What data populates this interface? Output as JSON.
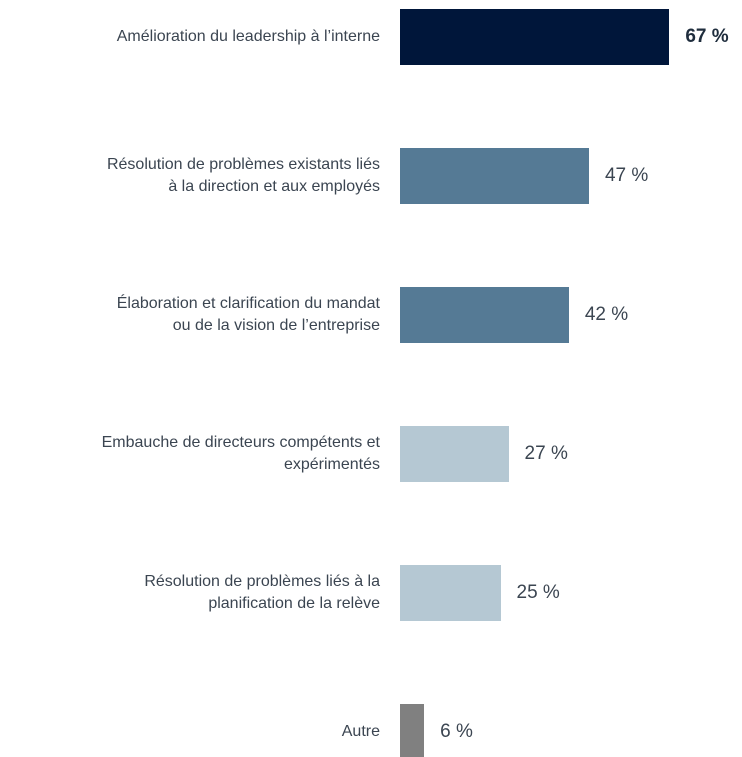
{
  "chart_data": {
    "type": "bar",
    "orientation": "horizontal",
    "categories": [
      "Amélioration du leadership à l’interne",
      "Résolution de problèmes existants liés\nà la direction et aux employés",
      "Élaboration et clarification du mandat\nou de la vision de l’entreprise",
      "Embauche de directeurs compétents et\nexpérimentés",
      "Résolution de problèmes liés à la\nplanification de la relève",
      "Autre"
    ],
    "values": [
      67,
      47,
      42,
      27,
      25,
      6
    ],
    "value_labels": [
      "67 %",
      "47 %",
      "42 %",
      "27 %",
      "25 %",
      "6 %"
    ],
    "colors": [
      "#00163a",
      "#557a95",
      "#557a95",
      "#b5c8d3",
      "#b5c8d3",
      "#808080"
    ]
  }
}
